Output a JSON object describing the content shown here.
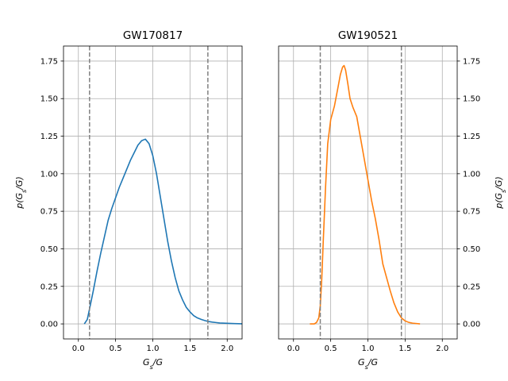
{
  "chart_data": [
    {
      "type": "line",
      "title": "GW170817",
      "xlabel": "G_s/G",
      "ylabel": "p(G_s/G)",
      "ylabel_side": "left",
      "xlim": [
        -0.2,
        2.2
      ],
      "ylim": [
        -0.1,
        1.85
      ],
      "xticks": [
        "0.0",
        "0.5",
        "1.0",
        "1.5",
        "2.0"
      ],
      "yticks": [
        "0.00",
        "0.25",
        "0.50",
        "0.75",
        "1.00",
        "1.25",
        "1.50",
        "1.75"
      ],
      "grid": true,
      "color": "#1f77b4",
      "vlines": [
        0.15,
        1.74
      ],
      "vline_color": "#808080",
      "series": [
        {
          "x": [
            0.08,
            0.12,
            0.15,
            0.2,
            0.25,
            0.3,
            0.35,
            0.4,
            0.45,
            0.5,
            0.55,
            0.6,
            0.65,
            0.7,
            0.75,
            0.8,
            0.85,
            0.9,
            0.95,
            1.0,
            1.05,
            1.1,
            1.15,
            1.2,
            1.25,
            1.3,
            1.35,
            1.4,
            1.45,
            1.5,
            1.55,
            1.6,
            1.65,
            1.7,
            1.75,
            1.8,
            1.85,
            1.9,
            2.0,
            2.1,
            2.2
          ],
          "y": [
            0.0,
            0.03,
            0.1,
            0.22,
            0.35,
            0.47,
            0.58,
            0.69,
            0.77,
            0.84,
            0.91,
            0.97,
            1.03,
            1.09,
            1.14,
            1.19,
            1.22,
            1.23,
            1.2,
            1.12,
            1.0,
            0.85,
            0.7,
            0.55,
            0.42,
            0.31,
            0.22,
            0.16,
            0.11,
            0.08,
            0.055,
            0.04,
            0.03,
            0.022,
            0.016,
            0.012,
            0.009,
            0.006,
            0.004,
            0.002,
            0.001
          ]
        }
      ]
    },
    {
      "type": "line",
      "title": "GW190521",
      "xlabel": "G_s/G",
      "ylabel": "p(G_s/G)",
      "ylabel_side": "right",
      "xlim": [
        -0.2,
        2.2
      ],
      "ylim": [
        -0.1,
        1.85
      ],
      "xticks": [
        "0.0",
        "0.5",
        "1.0",
        "1.5",
        "2.0"
      ],
      "yticks": [
        "0.00",
        "0.25",
        "0.50",
        "0.75",
        "1.00",
        "1.25",
        "1.50",
        "1.75"
      ],
      "grid": true,
      "color": "#ff7f0e",
      "vlines": [
        0.36,
        1.45
      ],
      "vline_color": "#808080",
      "series": [
        {
          "x": [
            0.22,
            0.28,
            0.31,
            0.34,
            0.36,
            0.38,
            0.4,
            0.43,
            0.46,
            0.5,
            0.55,
            0.6,
            0.63,
            0.66,
            0.68,
            0.7,
            0.73,
            0.76,
            0.8,
            0.85,
            0.9,
            0.95,
            1.0,
            1.05,
            1.1,
            1.15,
            1.2,
            1.25,
            1.3,
            1.35,
            1.4,
            1.45,
            1.5,
            1.55,
            1.6,
            1.7
          ],
          "y": [
            0.0,
            0.0,
            0.01,
            0.04,
            0.12,
            0.3,
            0.55,
            0.9,
            1.2,
            1.36,
            1.45,
            1.58,
            1.66,
            1.71,
            1.72,
            1.69,
            1.6,
            1.5,
            1.44,
            1.38,
            1.24,
            1.1,
            0.96,
            0.82,
            0.7,
            0.56,
            0.4,
            0.31,
            0.22,
            0.14,
            0.08,
            0.04,
            0.02,
            0.01,
            0.005,
            0.0
          ]
        }
      ]
    }
  ]
}
